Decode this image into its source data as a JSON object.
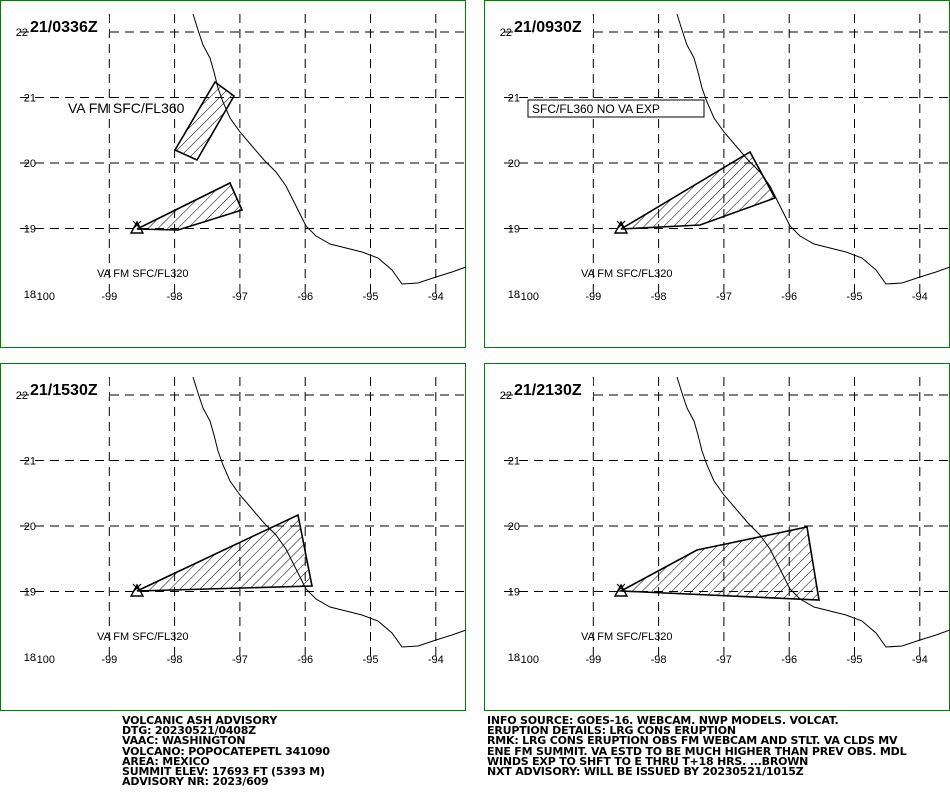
{
  "panels": [
    {
      "time": "21/0336Z",
      "annotations": [
        "VA FM SFC/FL360",
        "VA FM SFC/FL320"
      ]
    },
    {
      "time": "21/0930Z",
      "annotations": [
        "SFC/FL360 NO VA EXP",
        "VA FM SFC/FL320"
      ]
    },
    {
      "time": "21/1530Z",
      "annotations": [
        "VA FM SFC/FL320"
      ]
    },
    {
      "time": "21/2130Z",
      "annotations": [
        "VA FM SFC/FL320"
      ]
    }
  ],
  "lat_ticks": [
    22,
    21,
    20,
    19,
    18
  ],
  "lon_ticks": [
    -100,
    -99,
    -98,
    -97,
    -96,
    -95,
    -94
  ],
  "advisory_left": [
    "VOLCANIC ASH ADVISORY",
    "DTG: 20230521/0408Z",
    "VAAC: WASHINGTON",
    "VOLCANO: POPOCATEPETL 341090",
    "AREA: MEXICO",
    "SUMMIT ELEV: 17693 FT (5393 M)",
    "ADVISORY NR: 2023/609"
  ],
  "advisory_right": [
    "INFO SOURCE: GOES-16. WEBCAM. NWP MODELS. VOLCAT.",
    "ERUPTION DETAILS: LRG CONS ERUPTION",
    "RMK: LRG CONS ERUPTION OBS FM WEBCAM AND STLT. VA CLDS MV",
    "ENE FM SUMMIT. VA ESTD TO BE MUCH HIGHER THAN PREV OBS. MDL",
    "WINDS EXP TO SHFT TO E THRU T+18 HRS. ...BROWN",
    "NXT ADVISORY: WILL BE ISSUED BY 20230521/1015Z"
  ]
}
